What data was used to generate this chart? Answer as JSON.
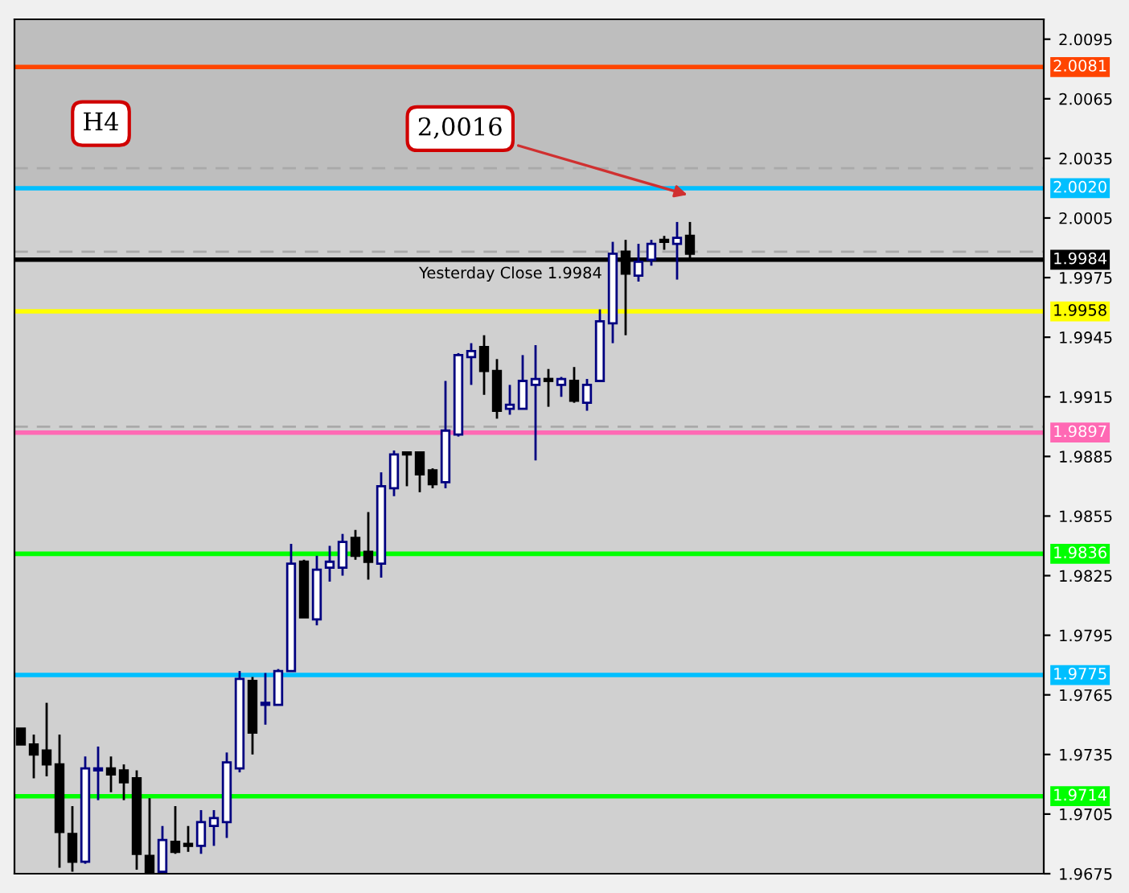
{
  "chart_data": {
    "type": "candlestick",
    "categories": [
      null,
      null,
      null,
      null,
      null,
      null,
      null,
      null,
      null,
      null,
      null,
      null,
      null,
      null,
      null,
      null,
      null,
      null,
      null,
      null,
      null,
      null,
      null,
      null,
      null,
      null,
      null,
      null,
      null,
      null,
      null,
      null,
      null,
      null,
      null,
      null,
      null,
      null,
      null,
      null,
      null,
      null,
      null,
      null,
      null,
      null,
      null,
      null,
      null,
      null,
      null,
      null,
      null,
      null,
      null,
      null,
      null,
      null,
      null,
      null,
      null,
      null,
      null,
      null,
      null,
      null,
      null,
      null,
      null,
      null,
      null,
      null,
      null,
      null,
      null,
      null,
      null,
      null,
      null,
      null
    ],
    "ohlc": [
      [
        1.9748,
        1.9748,
        1.974,
        1.974
      ],
      [
        1.974,
        1.9745,
        1.9723,
        1.9735
      ],
      [
        1.9737,
        1.9761,
        1.9724,
        1.973
      ],
      [
        1.973,
        1.9745,
        1.9678,
        1.9696
      ],
      [
        1.9695,
        1.9709,
        1.9676,
        1.9681
      ],
      [
        1.9681,
        1.9734,
        1.968,
        1.9728
      ],
      [
        1.9727,
        1.9739,
        1.9712,
        1.9728
      ],
      [
        1.9728,
        1.9734,
        1.9716,
        1.9725
      ],
      [
        1.9727,
        1.973,
        1.9712,
        1.9721
      ],
      [
        1.9723,
        1.9727,
        1.9677,
        1.9685
      ],
      [
        1.9684,
        1.9713,
        1.9676,
        1.9676
      ],
      [
        1.9676,
        1.9699,
        1.9676,
        1.9692
      ],
      [
        1.9691,
        1.9709,
        1.9685,
        1.9686
      ],
      [
        1.969,
        1.9699,
        1.9686,
        1.9689
      ],
      [
        1.9689,
        1.9707,
        1.9685,
        1.9701
      ],
      [
        1.9699,
        1.9707,
        1.9689,
        1.9703
      ],
      [
        1.9701,
        1.9736,
        1.9693,
        1.9731
      ],
      [
        1.9728,
        1.9777,
        1.9726,
        1.9773
      ],
      [
        1.9772,
        1.9774,
        1.9735,
        1.9746
      ],
      [
        1.976,
        1.9776,
        1.975,
        1.9761
      ],
      [
        1.976,
        1.9778,
        1.976,
        1.9777
      ],
      [
        1.9777,
        1.9841,
        1.9777,
        1.9831
      ],
      [
        1.9832,
        1.9833,
        1.9804,
        1.9804
      ],
      [
        1.9803,
        1.9835,
        1.98,
        1.9828
      ],
      [
        1.9829,
        1.984,
        1.9822,
        1.9832
      ],
      [
        1.9829,
        1.9846,
        1.9825,
        1.9842
      ],
      [
        1.9844,
        1.9848,
        1.9833,
        1.9835
      ],
      [
        1.9837,
        1.9857,
        1.9823,
        1.9832
      ],
      [
        1.9831,
        1.9877,
        1.9824,
        1.987
      ],
      [
        1.9869,
        1.9888,
        1.9865,
        1.9886
      ],
      [
        1.9887,
        1.9887,
        1.987,
        1.9886
      ],
      [
        1.9887,
        1.9887,
        1.9867,
        1.9876
      ],
      [
        1.9878,
        1.9879,
        1.9869,
        1.9871
      ],
      [
        1.9872,
        1.9923,
        1.9869,
        1.9898
      ],
      [
        1.9896,
        1.9937,
        1.9895,
        1.9936
      ],
      [
        1.9935,
        1.9942,
        1.9921,
        1.9938
      ],
      [
        1.994,
        1.9946,
        1.9916,
        1.9928
      ],
      [
        1.9928,
        1.9934,
        1.9904,
        1.9908
      ],
      [
        1.9909,
        1.9921,
        1.9906,
        1.9911
      ],
      [
        1.9909,
        1.9936,
        1.9909,
        1.9923
      ],
      [
        1.9921,
        1.9941,
        1.9883,
        1.9924
      ],
      [
        1.9924,
        1.9929,
        1.991,
        1.9923
      ],
      [
        1.9921,
        1.9925,
        1.9915,
        1.9924
      ],
      [
        1.9923,
        1.993,
        1.9912,
        1.9913
      ],
      [
        1.9912,
        1.9924,
        1.9908,
        1.9921
      ],
      [
        1.9923,
        1.9959,
        1.9923,
        1.9953
      ],
      [
        1.9952,
        1.9993,
        1.9942,
        1.9987
      ],
      [
        1.9988,
        1.9994,
        1.9946,
        1.9977
      ],
      [
        1.9976,
        1.9992,
        1.9973,
        1.9983
      ],
      [
        1.9984,
        1.9994,
        1.9981,
        1.9992
      ],
      [
        1.9994,
        1.9996,
        1.9989,
        1.9993
      ],
      [
        1.9992,
        2.0003,
        1.9974,
        1.9995
      ],
      [
        1.9996,
        2.0003,
        1.9984,
        1.9987
      ],
      null,
      null,
      null,
      null,
      null,
      null,
      null,
      null,
      null,
      null,
      null,
      null,
      null,
      null,
      null,
      null,
      null,
      null,
      null,
      null,
      null,
      null,
      null,
      null,
      null,
      null,
      null
    ],
    "ylim": [
      1.9675,
      2.0105
    ],
    "yticks": [
      1.9675,
      1.9705,
      1.9735,
      1.9765,
      1.9795,
      1.9825,
      1.9855,
      1.9885,
      1.9915,
      1.9945,
      1.9975,
      2.0005,
      2.0035,
      2.0065,
      2.0095
    ],
    "tick_labels": "y",
    "grid": false,
    "bands": [
      {
        "axis": "y",
        "from": 2.002,
        "to": 2.0105,
        "label": null,
        "color": "#bebebe"
      }
    ],
    "ref_lines": [
      {
        "axis": "y",
        "value": 2.0081,
        "label": "2.0081",
        "color": "#ff4500"
      },
      {
        "axis": "y",
        "value": 2.003,
        "label": null,
        "color": "#a9a9a9",
        "line_style": "dashed"
      },
      {
        "axis": "y",
        "value": 2.002,
        "label": "2.0020",
        "color": "#00bfff"
      },
      {
        "axis": "y",
        "value": 1.9988,
        "label": null,
        "color": "#a9a9a9",
        "line_style": "dashed"
      },
      {
        "axis": "y",
        "value": 1.9984,
        "label": "1.9984",
        "color": "#000000"
      },
      {
        "axis": "y",
        "value": 1.9958,
        "label": "1.9958",
        "color": "#ffff00"
      },
      {
        "axis": "y",
        "value": 1.99,
        "label": null,
        "color": "#a9a9a9",
        "line_style": "dashed"
      },
      {
        "axis": "y",
        "value": 1.9897,
        "label": "1.9897",
        "color": "#ff69b4"
      },
      {
        "axis": "y",
        "value": 1.9836,
        "label": "1.9836",
        "color": "#00ff00"
      },
      {
        "axis": "y",
        "value": 1.9775,
        "label": "1.9775",
        "color": "#00bfff"
      },
      {
        "axis": "y",
        "value": 1.9714,
        "label": "1.9714",
        "color": "#00ff00"
      }
    ],
    "annotations": [
      "H4",
      {
        "text": "2,0016",
        "y": 2.0016
      },
      {
        "text": "Yesterday Close 1.9984",
        "y": 1.9984
      }
    ]
  }
}
